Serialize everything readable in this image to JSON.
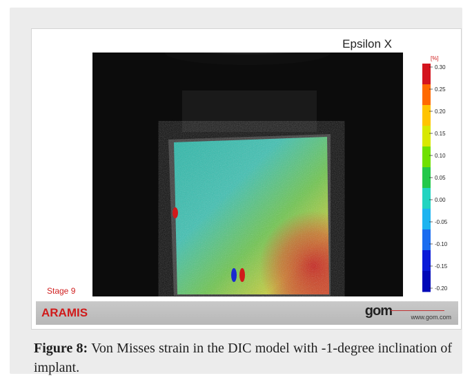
{
  "panel": {
    "title": "Epsilon X",
    "stage_label": "Stage 9"
  },
  "colorbar": {
    "unit": "[%]",
    "ticks": [
      "0.30",
      "0.25",
      "0.20",
      "0.15",
      "0.10",
      "0.05",
      "0.00",
      "-0.05",
      "-0.10",
      "-0.15",
      "-0.20"
    ],
    "colors": [
      "#d4141e",
      "#ff6a00",
      "#ffc400",
      "#d8e800",
      "#6fe000",
      "#23c84a",
      "#22d4c0",
      "#1db4f0",
      "#1a6cf0",
      "#0a1ad8",
      "#0008b8"
    ]
  },
  "footer": {
    "product": "ARAMIS",
    "brand": "gom",
    "url": "www.gom.com"
  },
  "caption": {
    "label": "Figure 8:",
    "text": "Von Misses strain in the DIC model with -1-degree inclination of implant."
  }
}
